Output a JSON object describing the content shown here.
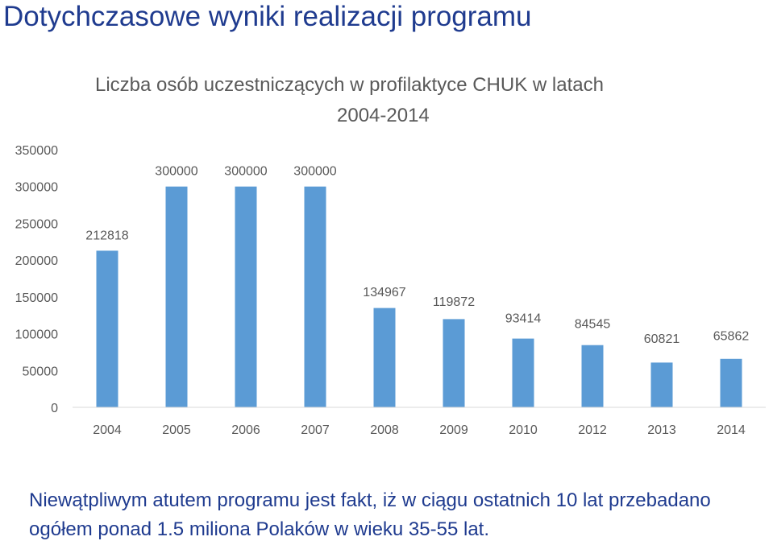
{
  "slide": {
    "title": "Dotychczasowe wyniki realizacji programu",
    "footer": "Niewątpliwym atutem programu jest fakt, iż w ciągu ostatnich 10 lat przebadano ogółem ponad 1.5 miliona Polaków w wieku 35-55 lat."
  },
  "chart_data": {
    "type": "bar",
    "title_line1": "Liczba osób uczestniczących w profilaktyce CHUK w latach",
    "title_line2": "2004-2014",
    "categories": [
      "2004",
      "2005",
      "2006",
      "2007",
      "2008",
      "2009",
      "2010",
      "2012",
      "2013",
      "2014"
    ],
    "values": [
      212818,
      300000,
      300000,
      300000,
      134967,
      119872,
      93414,
      84545,
      60821,
      65862
    ],
    "data_labels": [
      "212818",
      "300000",
      "300000",
      "300000",
      "134967",
      "119872",
      "93414",
      "84545",
      "60821",
      "65862"
    ],
    "y_ticks": [
      "0",
      "50000",
      "100000",
      "150000",
      "200000",
      "250000",
      "300000",
      "350000"
    ],
    "ylim": [
      0,
      350000
    ],
    "grid": false,
    "legend": "none",
    "bar_color": "#5b9bd5"
  }
}
